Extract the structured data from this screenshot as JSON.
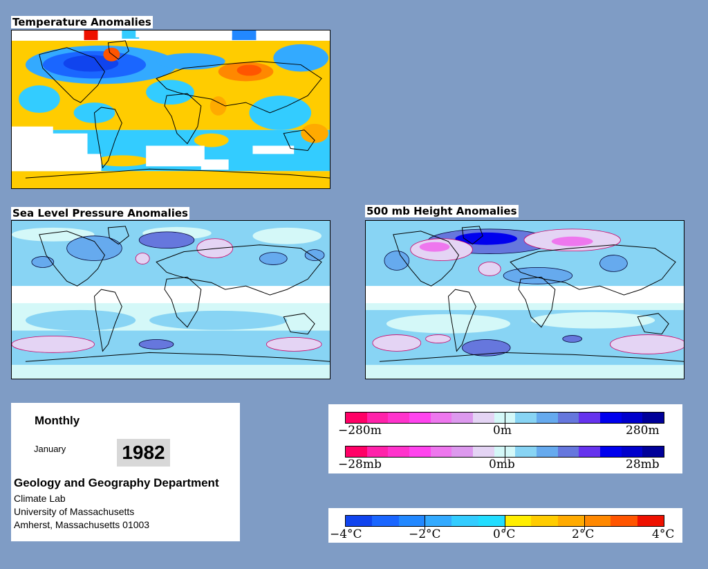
{
  "panels": {
    "temperature": {
      "title": "Temperature Anomalies"
    },
    "slp": {
      "title": "Sea Level Pressure Anomalies"
    },
    "height": {
      "title": "500 mb Height Anomalies"
    }
  },
  "info": {
    "period": "Monthly",
    "month": "January",
    "year": "1982",
    "department": "Geology and Geography Department",
    "lab": "Climate Lab",
    "university": "University of Massachusetts",
    "address": "Amherst, Massachusetts 01003"
  },
  "legends": {
    "height": {
      "min": "−280m",
      "mid": "0m",
      "max": "280m"
    },
    "pressure": {
      "min": "−28mb",
      "mid": "0mb",
      "max": "28mb"
    },
    "temperature": {
      "l1": "−4°C",
      "l2": "−2°C",
      "l3": "0°C",
      "l4": "2°C",
      "l5": "4°C"
    }
  },
  "colors": {
    "background": "#7f9cc5",
    "anomaly_scale": [
      "#ff0066",
      "#ff22aa",
      "#ff33cc",
      "#ff44ee",
      "#ee77ee",
      "#dd99ee",
      "#e4d4f4",
      "#d4f8f8",
      "#88d4f4",
      "#66aaee",
      "#6677dd",
      "#6633ee",
      "#0000ee",
      "#0000cc",
      "#000099"
    ],
    "temp_scale": [
      "#1044ee",
      "#1a66ff",
      "#2288ff",
      "#33aaff",
      "#33ccff",
      "#22ddff",
      "#ffee00",
      "#ffcc00",
      "#ffaa00",
      "#ff8800",
      "#ff5500",
      "#ee1100"
    ]
  }
}
